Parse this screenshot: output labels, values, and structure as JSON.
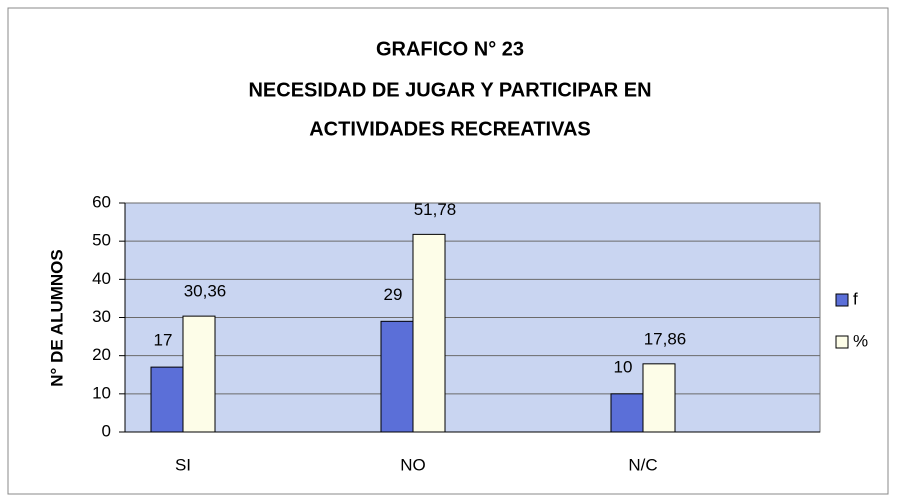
{
  "chart_data": {
    "type": "bar",
    "title": "GRAFICO N° 23",
    "subtitle": [
      "NECESIDAD DE JUGAR Y PARTICIPAR EN",
      "ACTIVIDADES RECREATIVAS"
    ],
    "y_label": "N° DE ALUMNOS",
    "categories": [
      "SI",
      "NO",
      "N/C"
    ],
    "series": [
      {
        "name": "f",
        "color": "#5b6fd8",
        "values": [
          17,
          29,
          10
        ]
      },
      {
        "name": "%",
        "color": "#fdfde8",
        "values": [
          30.36,
          51.78,
          17.86
        ],
        "value_labels": [
          "30,36",
          "51,78",
          "17,86"
        ]
      }
    ],
    "ylim": [
      0,
      60
    ],
    "yticks": [
      0,
      10,
      20,
      30,
      40,
      50,
      60
    ],
    "grid": true,
    "legend": "right",
    "plot_background": "#c9d5f1"
  }
}
